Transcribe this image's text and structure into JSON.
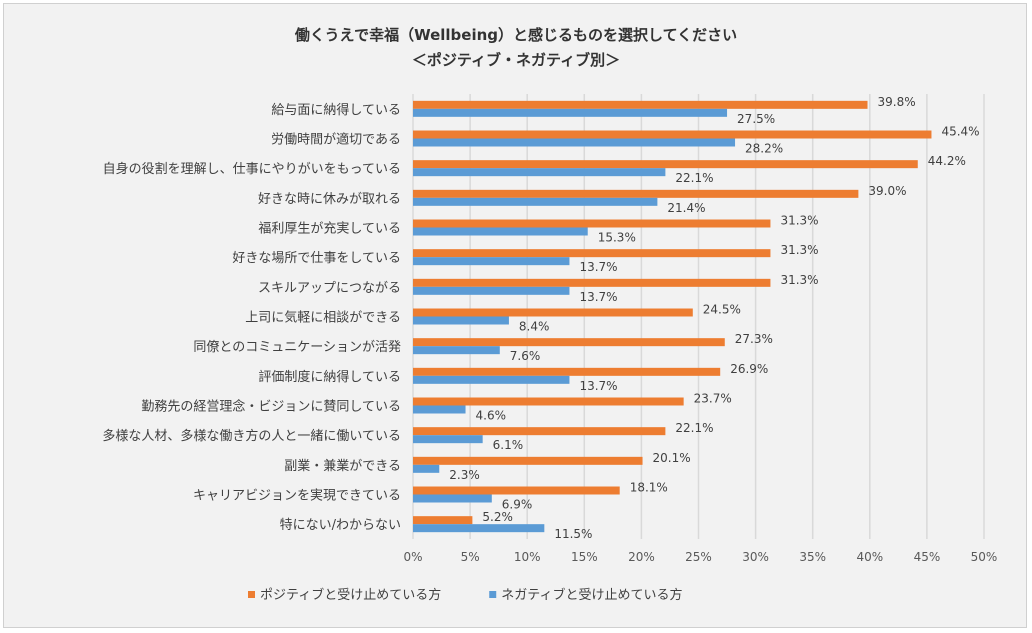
{
  "chart_data": {
    "type": "bar",
    "orientation": "horizontal",
    "title": "働くうえで幸福（Wellbeing）と感じるものを選択してください",
    "subtitle": "＜ポジティブ・ネガティブ別＞",
    "categories": [
      "給与面に納得している",
      "労働時間が適切である",
      "自身の役割を理解し、仕事にやりがいをもっている",
      "好きな時に休みが取れる",
      "福利厚生が充実している",
      "好きな場所で仕事をしている",
      "スキルアップにつながる",
      "上司に気軽に相談ができる",
      "同僚とのコミュニケーションが活発",
      "評価制度に納得している",
      "勤務先の経営理念・ビジョンに賛同している",
      "多様な人材、多様な働き方の人と一緒に働いている",
      "副業・兼業ができる",
      "キャリアビジョンを実現できている",
      "特にない/わからない"
    ],
    "series": [
      {
        "name": "ポジティブと受け止めている方",
        "color": "#ed7d31",
        "values": [
          39.8,
          45.4,
          44.2,
          39.0,
          31.3,
          31.3,
          31.3,
          24.5,
          27.3,
          26.9,
          23.7,
          22.1,
          20.1,
          18.1,
          5.2
        ]
      },
      {
        "name": "ネガティブと受け止めている方",
        "color": "#5b9bd5",
        "values": [
          27.5,
          28.2,
          22.1,
          21.4,
          15.3,
          13.7,
          13.7,
          8.4,
          7.6,
          13.7,
          4.6,
          6.1,
          2.3,
          6.9,
          11.5
        ]
      }
    ],
    "xlim": [
      0,
      50
    ],
    "xticks": [
      "0%",
      "5%",
      "10%",
      "15%",
      "20%",
      "25%",
      "30%",
      "35%",
      "40%",
      "45%",
      "50%"
    ],
    "grid": true,
    "legend": "bottom",
    "value_format": "percent-1dp"
  }
}
